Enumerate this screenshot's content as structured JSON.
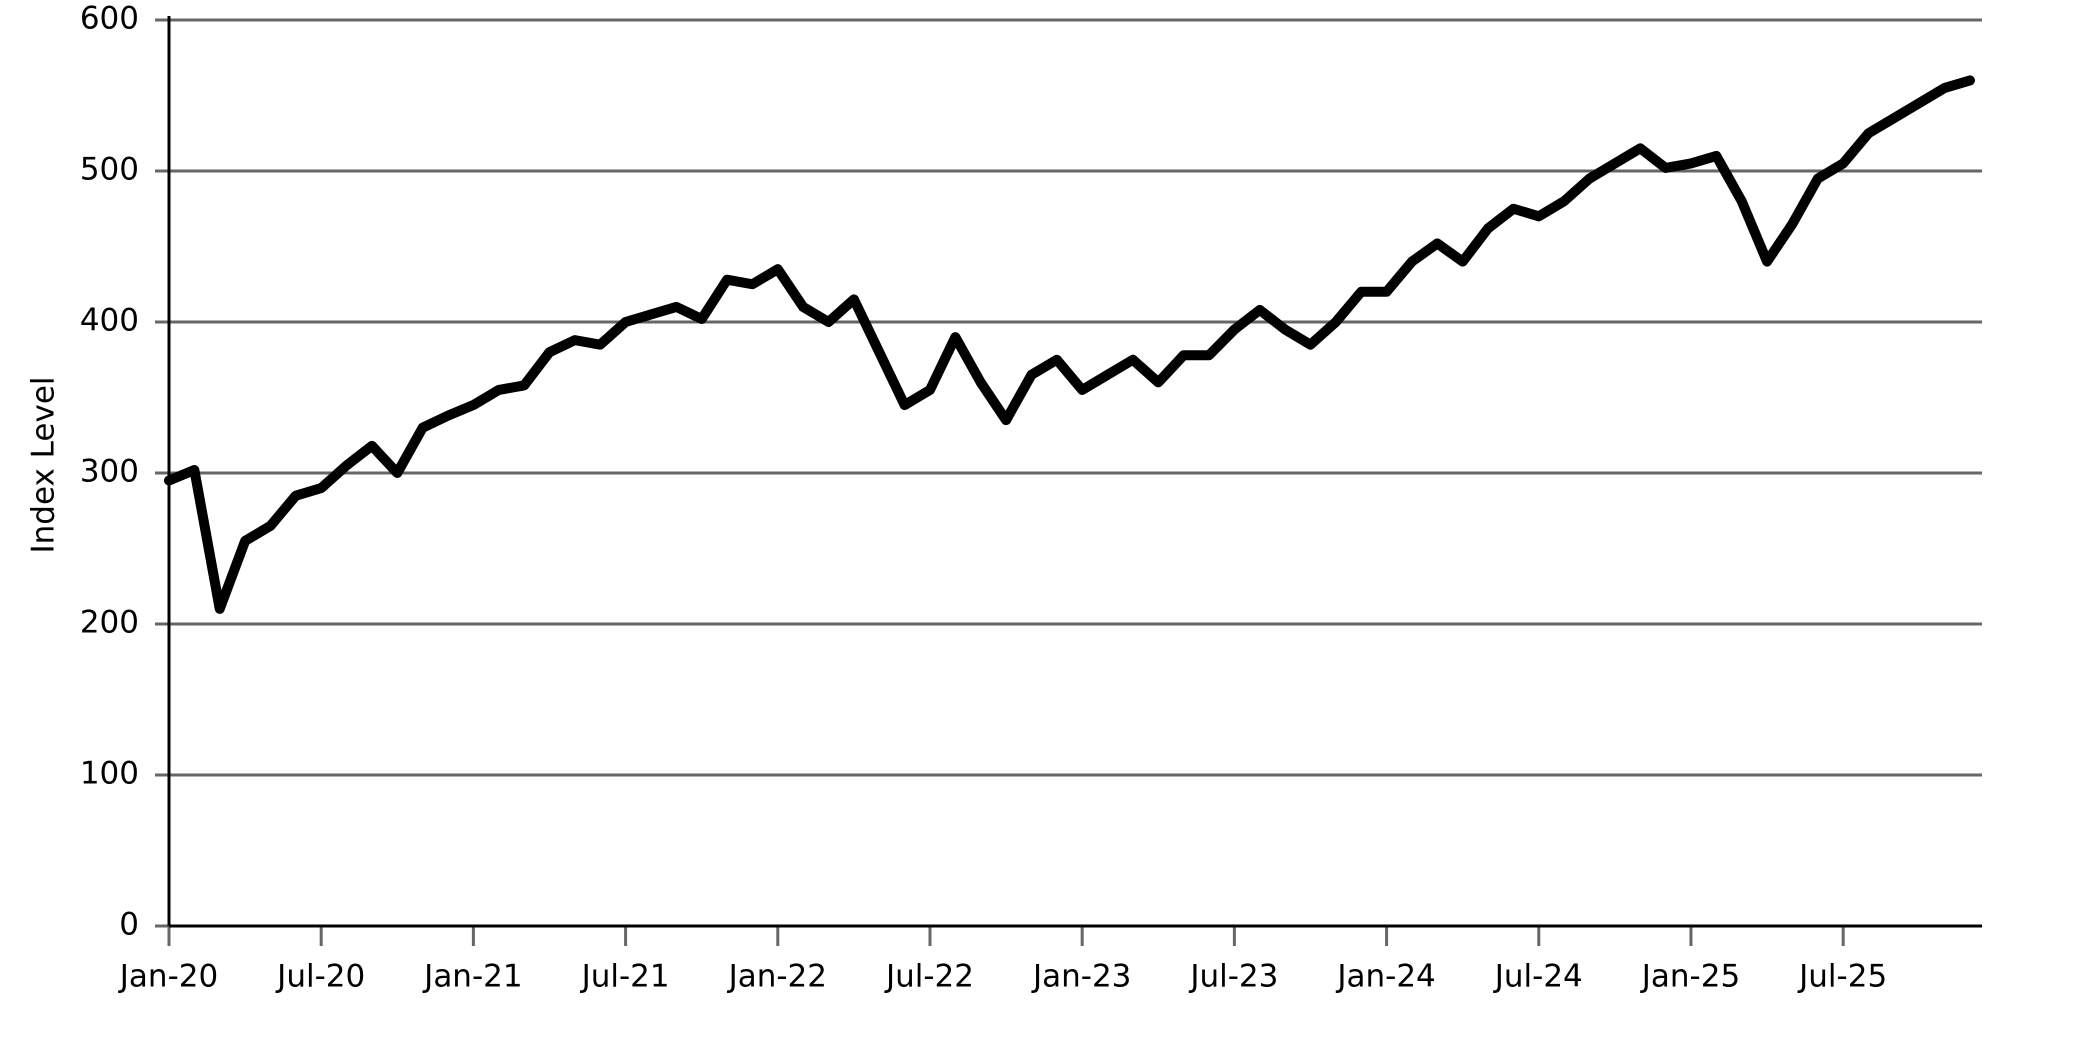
{
  "chart_data": {
    "type": "line",
    "y_label": "Index Level",
    "x": [
      "2020-01",
      "2020-02",
      "2020-03",
      "2020-04",
      "2020-05",
      "2020-06",
      "2020-07",
      "2020-08",
      "2020-09",
      "2020-10",
      "2020-11",
      "2020-12",
      "2021-01",
      "2021-02",
      "2021-03",
      "2021-04",
      "2021-05",
      "2021-06",
      "2021-07",
      "2021-08",
      "2021-09",
      "2021-10",
      "2021-11",
      "2021-12",
      "2022-01",
      "2022-02",
      "2022-03",
      "2022-04",
      "2022-05",
      "2022-06",
      "2022-07",
      "2022-08",
      "2022-09",
      "2022-10",
      "2022-11",
      "2022-12",
      "2023-01",
      "2023-02",
      "2023-03",
      "2023-04",
      "2023-05",
      "2023-06",
      "2023-07",
      "2023-08",
      "2023-09",
      "2023-10",
      "2023-11",
      "2023-12",
      "2024-01",
      "2024-02",
      "2024-03",
      "2024-04",
      "2024-05",
      "2024-06",
      "2024-07",
      "2024-08",
      "2024-09",
      "2024-10",
      "2024-11",
      "2024-12",
      "2025-01",
      "2025-02",
      "2025-03",
      "2025-04",
      "2025-05",
      "2025-06",
      "2025-07",
      "2025-08",
      "2025-09",
      "2025-10",
      "2025-11",
      "2025-12"
    ],
    "series": [
      {
        "name": "Index Level",
        "color": "#000000",
        "values": [
          295,
          302,
          210,
          255,
          265,
          285,
          290,
          305,
          318,
          300,
          330,
          338,
          345,
          355,
          358,
          380,
          388,
          385,
          400,
          405,
          410,
          402,
          428,
          425,
          435,
          410,
          400,
          415,
          380,
          345,
          355,
          390,
          360,
          335,
          365,
          375,
          355,
          365,
          375,
          360,
          378,
          378,
          395,
          408,
          395,
          385,
          400,
          420,
          420,
          440,
          452,
          440,
          462,
          475,
          470,
          480,
          495,
          505,
          515,
          502,
          505,
          510,
          480,
          440,
          465,
          495,
          505,
          525,
          535,
          545,
          555,
          560
        ]
      }
    ],
    "xlim": [
      "2020-01",
      "2025-12"
    ],
    "xticks": [
      {
        "value": "2020-01",
        "label": "Jan-20"
      },
      {
        "value": "2020-07",
        "label": "Jul-20"
      },
      {
        "value": "2021-01",
        "label": "Jan-21"
      },
      {
        "value": "2021-07",
        "label": "Jul-21"
      },
      {
        "value": "2022-01",
        "label": "Jan-22"
      },
      {
        "value": "2022-07",
        "label": "Jul-22"
      },
      {
        "value": "2023-01",
        "label": "Jan-23"
      },
      {
        "value": "2023-07",
        "label": "Jul-23"
      },
      {
        "value": "2024-01",
        "label": "Jan-24"
      },
      {
        "value": "2024-07",
        "label": "Jul-24"
      },
      {
        "value": "2025-01",
        "label": "Jan-25"
      },
      {
        "value": "2025-07",
        "label": "Jul-25"
      }
    ],
    "ylim": [
      0,
      600
    ],
    "yticks": [
      0,
      100,
      200,
      300,
      400,
      500,
      600
    ],
    "grid": true
  }
}
